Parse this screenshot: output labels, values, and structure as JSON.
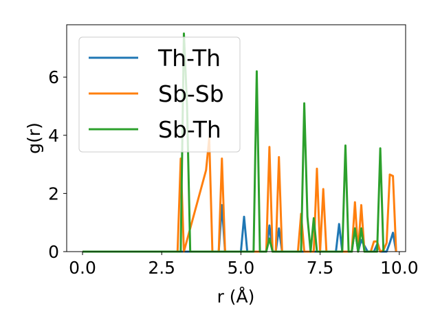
{
  "chart_data": {
    "type": "line",
    "xlabel": "r (Å)",
    "ylabel": "g(r)",
    "xlim": [
      -0.5,
      10.2
    ],
    "ylim": [
      0,
      7.8
    ],
    "xticks": [
      0.0,
      2.5,
      5.0,
      7.5,
      10.0
    ],
    "xtick_labels": [
      "0.0",
      "2.5",
      "5.0",
      "7.5",
      "10.0"
    ],
    "yticks": [
      0,
      2,
      4,
      6
    ],
    "ytick_labels": [
      "0",
      "2",
      "4",
      "6"
    ],
    "grid": false,
    "legend_position": "upper-left",
    "series": [
      {
        "name": "Th-Th",
        "color": "#1f77b4",
        "x": [
          0.0,
          4.3,
          4.4,
          4.5,
          5.0,
          5.1,
          5.2,
          5.8,
          5.9,
          6.0,
          6.1,
          6.2,
          6.3,
          8.0,
          8.1,
          8.2,
          8.5,
          8.6,
          8.7,
          8.8,
          9.0,
          9.2,
          9.3,
          9.4,
          9.6,
          9.7,
          9.8,
          9.9
        ],
        "y": [
          0,
          0,
          1.6,
          0,
          0,
          1.2,
          0,
          0,
          0.9,
          0,
          0,
          0.8,
          0,
          0,
          0.95,
          0,
          0,
          0.8,
          0,
          0.4,
          0,
          0,
          0.25,
          0,
          0,
          0.3,
          0.65,
          0
        ]
      },
      {
        "name": "Sb-Sb",
        "color": "#ff7f0e",
        "x": [
          0.0,
          3.0,
          3.1,
          3.2,
          3.9,
          4.0,
          4.1,
          4.3,
          4.4,
          4.5,
          5.8,
          5.9,
          6.0,
          6.1,
          6.2,
          6.3,
          6.8,
          6.9,
          7.0,
          7.3,
          7.4,
          7.5,
          7.6,
          7.7,
          8.5,
          8.6,
          8.7,
          8.8,
          8.9,
          9.1,
          9.2,
          9.3,
          9.4,
          9.5,
          9.6,
          9.7,
          9.8,
          9.9
        ],
        "y": [
          0,
          0,
          3.2,
          0,
          2.8,
          3.9,
          0,
          0,
          3.2,
          0,
          0,
          3.6,
          0,
          0,
          3.25,
          0,
          0,
          1.3,
          0,
          0,
          2.85,
          0,
          2.15,
          0,
          0,
          1.7,
          0,
          1.6,
          0,
          0,
          0.35,
          0.35,
          0,
          0.05,
          0.3,
          2.65,
          2.6,
          0
        ]
      },
      {
        "name": "Sb-Th",
        "color": "#2ca02c",
        "x": [
          0.0,
          3.1,
          3.2,
          3.3,
          3.4,
          5.4,
          5.5,
          5.6,
          5.8,
          5.9,
          6.0,
          6.9,
          7.0,
          7.1,
          7.2,
          7.3,
          7.4,
          8.2,
          8.3,
          8.4,
          8.5,
          8.6,
          8.7,
          8.8,
          8.9,
          9.3,
          9.4,
          9.5
        ],
        "y": [
          0,
          0,
          7.5,
          5.0,
          0,
          0,
          6.2,
          0,
          0,
          0.45,
          0,
          0,
          5.1,
          1.2,
          0,
          1.15,
          0,
          0,
          3.65,
          0,
          0,
          0.8,
          0,
          0.8,
          0,
          0,
          3.55,
          0
        ]
      }
    ]
  }
}
